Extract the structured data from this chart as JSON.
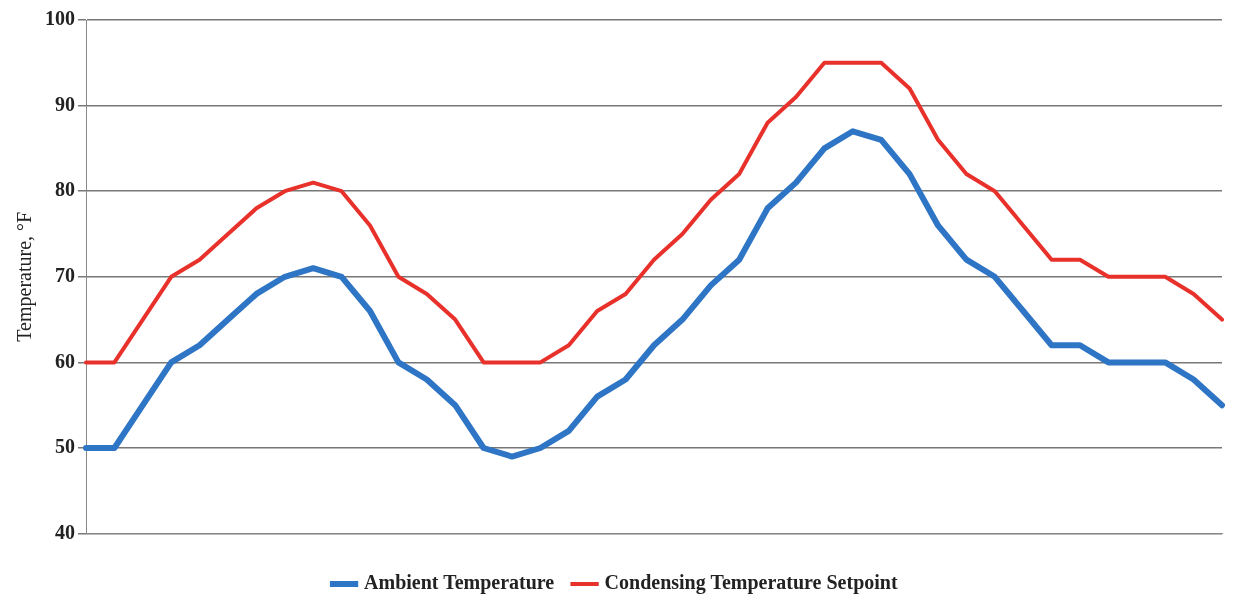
{
  "chart_data": {
    "type": "line",
    "ylabel": "Temperature, °F",
    "categories": [
      null,
      null,
      null,
      null,
      null,
      null,
      null,
      null,
      null,
      null,
      null,
      null,
      null,
      null,
      null,
      null,
      null,
      null,
      null,
      null,
      null,
      null,
      null,
      null,
      null,
      null,
      null,
      null,
      null,
      null,
      null,
      null,
      null,
      null,
      null,
      null,
      null,
      null,
      null,
      null,
      null
    ],
    "series": [
      {
        "name": "Ambient Temperature",
        "color": "#2e75c6",
        "values": [
          50,
          50,
          55,
          60,
          62,
          65,
          68,
          70,
          71,
          70,
          66,
          60,
          58,
          55,
          50,
          49,
          50,
          52,
          56,
          58,
          62,
          65,
          69,
          72,
          78,
          81,
          85,
          87,
          86,
          82,
          76,
          72,
          70,
          66,
          62,
          62,
          60,
          60,
          60,
          58,
          55
        ]
      },
      {
        "name": "Condensing Temperature Setpoint",
        "color": "#e8312a",
        "values": [
          60,
          60,
          65,
          70,
          72,
          75,
          78,
          80,
          81,
          80,
          76,
          70,
          68,
          65,
          60,
          60,
          60,
          62,
          66,
          68,
          72,
          75,
          79,
          82,
          88,
          91,
          95,
          95,
          95,
          92,
          86,
          82,
          80,
          76,
          72,
          72,
          70,
          70,
          70,
          68,
          65
        ]
      }
    ],
    "ylim": [
      40,
      100
    ],
    "yticks": [
      40,
      50,
      60,
      70,
      80,
      90,
      100
    ],
    "grid": "y",
    "legend": "bottom",
    "marker": "none",
    "line_style": "solid"
  }
}
